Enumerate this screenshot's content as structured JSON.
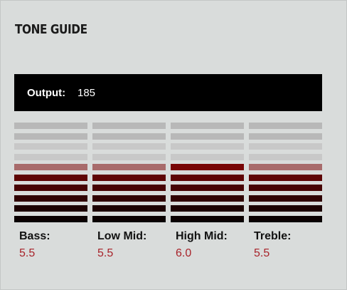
{
  "header": {
    "title": "TONE GUIDE"
  },
  "output": {
    "label": "Output:",
    "value": 185
  },
  "controls": [
    {
      "name": "Bass:",
      "value": 5.5,
      "value_label": "5.5"
    },
    {
      "name": "Low Mid:",
      "value": 5.5,
      "value_label": "5.5"
    },
    {
      "name": "High Mid:",
      "value": 6,
      "value_label": "6.0"
    },
    {
      "name": "Treble:",
      "value": 5.5,
      "value_label": "5.5"
    }
  ]
}
